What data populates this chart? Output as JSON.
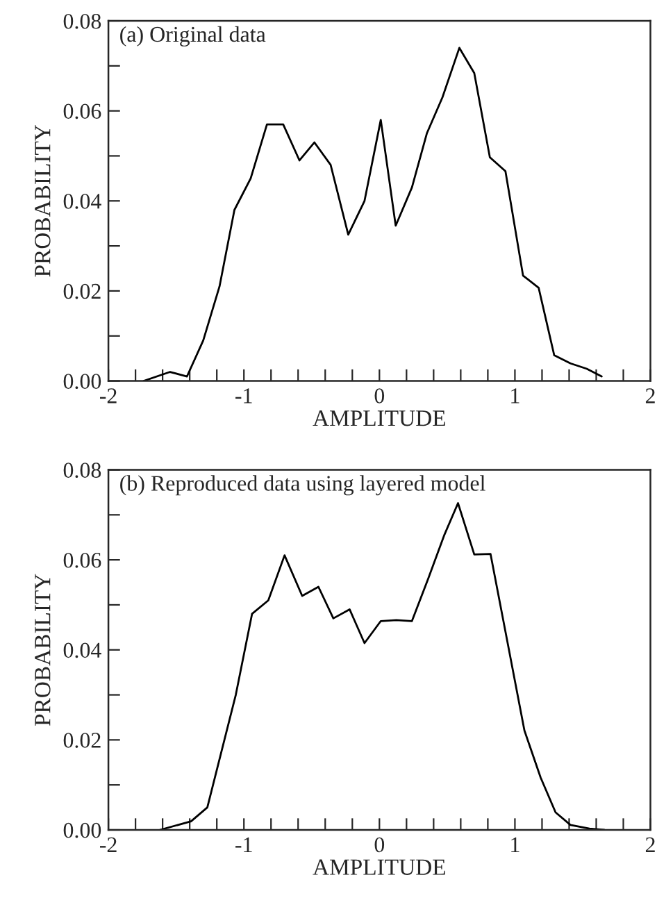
{
  "chart_data": [
    {
      "type": "line",
      "annotations": [
        "(a) Original data"
      ],
      "xlabel": "AMPLITUDE",
      "ylabel": "PROBABILITY",
      "xlim": [
        -2,
        2
      ],
      "ylim": [
        0,
        0.08
      ],
      "xticks": [
        -2,
        {
          "value": -1.8,
          "label": null
        },
        {
          "value": -1.6,
          "label": null
        },
        {
          "value": -1.4,
          "label": null
        },
        {
          "value": -1.2,
          "label": null
        },
        -1,
        {
          "value": -0.8,
          "label": null
        },
        {
          "value": -0.6,
          "label": null
        },
        {
          "value": -0.4,
          "label": null
        },
        {
          "value": -0.2,
          "label": null
        },
        0,
        {
          "value": 0.2,
          "label": null
        },
        {
          "value": 0.4,
          "label": null
        },
        {
          "value": 0.6,
          "label": null
        },
        {
          "value": 0.8,
          "label": null
        },
        1,
        {
          "value": 1.2,
          "label": null
        },
        {
          "value": 1.4,
          "label": null
        },
        {
          "value": 1.6,
          "label": null
        },
        {
          "value": 1.8,
          "label": null
        },
        2
      ],
      "yticks": [
        {
          "value": 0,
          "label": "0.00"
        },
        {
          "value": 0.01,
          "label": null
        },
        {
          "value": 0.02,
          "label": "0.02"
        },
        {
          "value": 0.03,
          "label": null
        },
        {
          "value": 0.04,
          "label": "0.04"
        },
        {
          "value": 0.05,
          "label": null
        },
        {
          "value": 0.06,
          "label": "0.06"
        },
        {
          "value": 0.07,
          "label": null
        },
        {
          "value": 0.08,
          "label": "0.08"
        }
      ],
      "series": [
        {
          "color": "#000000",
          "x": [
            -1.74,
            -1.545,
            -1.42,
            -1.3,
            -1.18,
            -1.07,
            -0.95,
            -0.83,
            -0.71,
            -0.59,
            -0.48,
            -0.36,
            -0.23,
            -0.11,
            0.01,
            0.12,
            0.24,
            0.35,
            0.465,
            0.59,
            0.7,
            0.815,
            0.93,
            1.06,
            1.175,
            1.29,
            1.41,
            1.53,
            1.64
          ],
          "values": [
            0,
            0.002,
            0.001,
            0.009,
            0.021,
            0.038,
            0.045,
            0.057,
            0.057,
            0.049,
            0.053,
            0.048,
            0.0325,
            0.04,
            0.058,
            0.0345,
            0.043,
            0.055,
            0.063,
            0.074,
            0.0684,
            0.0497,
            0.0466,
            0.0234,
            0.0207,
            0.0057,
            0.0039,
            0.0027,
            0.001
          ]
        }
      ]
    },
    {
      "type": "line",
      "annotations": [
        "(b) Reproduced data using layered model"
      ],
      "xlabel": "AMPLITUDE",
      "ylabel": "PROBABILITY",
      "xlim": [
        -2,
        2
      ],
      "ylim": [
        0,
        0.08
      ],
      "xticks": [
        -2,
        {
          "value": -1.8,
          "label": null
        },
        {
          "value": -1.6,
          "label": null
        },
        {
          "value": -1.4,
          "label": null
        },
        {
          "value": -1.2,
          "label": null
        },
        -1,
        {
          "value": -0.8,
          "label": null
        },
        {
          "value": -0.6,
          "label": null
        },
        {
          "value": -0.4,
          "label": null
        },
        {
          "value": -0.2,
          "label": null
        },
        0,
        {
          "value": 0.2,
          "label": null
        },
        {
          "value": 0.4,
          "label": null
        },
        {
          "value": 0.6,
          "label": null
        },
        {
          "value": 0.8,
          "label": null
        },
        1,
        {
          "value": 1.2,
          "label": null
        },
        {
          "value": 1.4,
          "label": null
        },
        {
          "value": 1.6,
          "label": null
        },
        {
          "value": 1.8,
          "label": null
        },
        2
      ],
      "yticks": [
        {
          "value": 0,
          "label": "0.00"
        },
        {
          "value": 0.01,
          "label": null
        },
        {
          "value": 0.02,
          "label": "0.02"
        },
        {
          "value": 0.03,
          "label": null
        },
        {
          "value": 0.04,
          "label": "0.04"
        },
        {
          "value": 0.05,
          "label": null
        },
        {
          "value": 0.06,
          "label": "0.06"
        },
        {
          "value": 0.07,
          "label": null
        },
        {
          "value": 0.08,
          "label": "0.08"
        }
      ],
      "series": [
        {
          "color": "#000000",
          "x": [
            -1.62,
            -1.39,
            -1.27,
            -1.06,
            -0.94,
            -0.82,
            -0.7,
            -0.57,
            -0.45,
            -0.34,
            -0.22,
            -0.11,
            0.01,
            0.125,
            0.24,
            0.36,
            0.48,
            0.58,
            0.7,
            0.82,
            0.94,
            1.07,
            1.19,
            1.3,
            1.41,
            1.55,
            1.66
          ],
          "values": [
            0,
            0.0019,
            0.005,
            0.03,
            0.048,
            0.051,
            0.061,
            0.052,
            0.054,
            0.047,
            0.049,
            0.0415,
            0.0464,
            0.0466,
            0.0464,
            0.0558,
            0.0656,
            0.0726,
            0.0612,
            0.0613,
            0.0425,
            0.0221,
            0.0116,
            0.0039,
            0.0011,
            0.0003,
            0
          ]
        }
      ]
    }
  ]
}
